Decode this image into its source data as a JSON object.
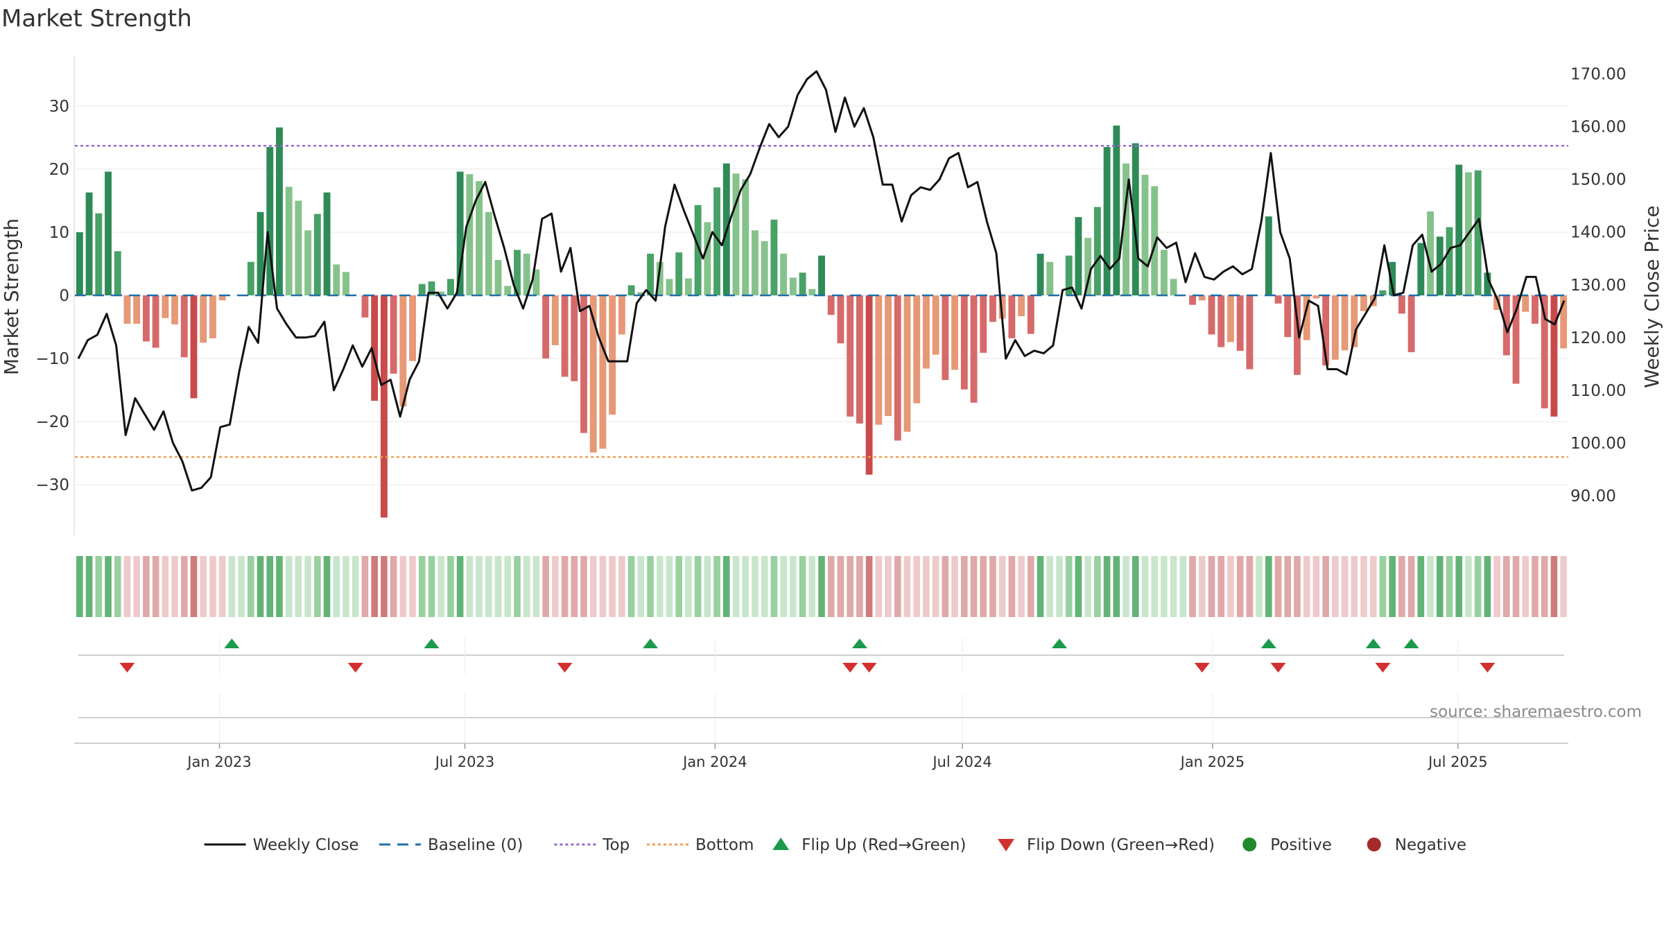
{
  "chart_data": {
    "type": "bar",
    "title": "Market Strength",
    "ylabel_left": "Market Strength",
    "ylabel_right": "Weekly Close Price",
    "left_ylim": [
      -38,
      38
    ],
    "left_ticks": [
      "30",
      "20",
      "10",
      "0",
      "−10",
      "−20",
      "−30"
    ],
    "left_tick_values": [
      30,
      20,
      10,
      0,
      -10,
      -20,
      -30
    ],
    "right_ylim": [
      82.5,
      173.5
    ],
    "right_ticks": [
      "170.00",
      "160.00",
      "150.00",
      "140.00",
      "130.00",
      "120.00",
      "110.00",
      "100.00",
      "90.00"
    ],
    "right_tick_values": [
      170,
      160,
      150,
      140,
      130,
      120,
      110,
      100,
      90
    ],
    "top_threshold": 23.7,
    "bottom_threshold": -25.6,
    "baseline": 0,
    "x_ticks": [
      "Jan 2023",
      "Jul 2023",
      "Jan 2024",
      "Jul 2024",
      "Jan 2025",
      "Jul 2025"
    ],
    "x_tick_weeks": [
      14.7,
      40.5,
      66.8,
      92.8,
      119.1,
      144.9
    ],
    "strength": [
      10,
      16.3,
      13,
      19.6,
      7,
      -4.5,
      -4.5,
      -7.3,
      -8.3,
      -3.6,
      -4.6,
      -9.8,
      -16.3,
      -7.5,
      -6.8,
      -0.8,
      0,
      0,
      5.3,
      13.2,
      23.5,
      26.6,
      17.2,
      15,
      10.3,
      12.9,
      16.3,
      4.9,
      3.7,
      0,
      -3.5,
      -16.7,
      -35.2,
      -12.4,
      -17.6,
      -10.4,
      1.8,
      2.2,
      0.6,
      2.6,
      19.6,
      19.2,
      18.1,
      13.2,
      5.6,
      1.5,
      7.2,
      6.6,
      4.1,
      -10,
      -7.9,
      -12.9,
      -13.6,
      -21.8,
      -24.9,
      -24.3,
      -18.9,
      -6.2,
      1.6,
      0.5,
      6.6,
      5.3,
      2.6,
      6.8,
      2.7,
      14.3,
      11.6,
      17.1,
      20.9,
      19.3,
      18.4,
      10.3,
      8.6,
      12,
      6.6,
      2.8,
      3.6,
      1,
      6.3,
      -3.1,
      -7.6,
      -19.2,
      -20.3,
      -28.4,
      -20.5,
      -19.1,
      -23,
      -21.6,
      -17.1,
      -11.6,
      -9.4,
      -13.4,
      -11.8,
      -14.9,
      -17,
      -9.1,
      -4.2,
      -3.7,
      -6.8,
      -3.3,
      -6.1,
      6.6,
      5.3,
      0,
      6.3,
      12.4,
      9.1,
      14,
      23.5,
      26.9,
      20.9,
      24.1,
      19.1,
      17.3,
      7.2,
      2.6,
      0,
      -1.5,
      -0.8,
      -6.2,
      -8.2,
      -7.4,
      -8.8,
      -11.7,
      0,
      12.5,
      -1.3,
      -6.6,
      -12.6,
      -7.1,
      -0.5,
      -11.1,
      -10.2,
      -8.7,
      -8.2,
      -2.5,
      -1.7,
      0.8,
      5.3,
      -2.9,
      -9,
      8.3,
      13.3,
      9.3,
      10.8,
      20.7,
      19.5,
      19.8,
      3.6,
      -2.3,
      -9.5,
      -14,
      -2.6,
      -4.5,
      -17.9,
      -19.2,
      -8.4
    ],
    "strength_shade": [
      3,
      3,
      2,
      3,
      2,
      1,
      1,
      2,
      2,
      1,
      1,
      2,
      3,
      1,
      1,
      1,
      1,
      1,
      2,
      3,
      3,
      3,
      1,
      1,
      1,
      2,
      3,
      1,
      1,
      1,
      2,
      3,
      3,
      2,
      1,
      1,
      2,
      2,
      1,
      2,
      3,
      1,
      1,
      1,
      1,
      1,
      2,
      1,
      1,
      2,
      1,
      2,
      2,
      2,
      1,
      1,
      1,
      1,
      2,
      1,
      2,
      1,
      1,
      2,
      1,
      2,
      1,
      2,
      3,
      1,
      1,
      1,
      1,
      2,
      1,
      1,
      2,
      1,
      3,
      2,
      2,
      2,
      2,
      3,
      1,
      1,
      2,
      1,
      1,
      1,
      1,
      2,
      1,
      2,
      2,
      2,
      2,
      1,
      2,
      1,
      2,
      3,
      1,
      1,
      2,
      3,
      1,
      2,
      3,
      3,
      1,
      3,
      1,
      1,
      1,
      1,
      1,
      2,
      1,
      2,
      2,
      1,
      2,
      2,
      1,
      3,
      2,
      2,
      2,
      1,
      1,
      2,
      1,
      1,
      1,
      1,
      1,
      2,
      3,
      2,
      2,
      3,
      1,
      3,
      2,
      3,
      1,
      2,
      3,
      1,
      2,
      2,
      1,
      2,
      2,
      3,
      1
    ],
    "heat_strip": [
      3,
      3,
      2,
      3,
      2,
      1,
      1,
      2,
      2,
      1,
      1,
      2,
      3,
      1,
      1,
      1,
      1,
      1,
      2,
      3,
      3,
      3,
      1,
      1,
      1,
      2,
      3,
      1,
      1,
      1,
      2,
      3,
      3,
      2,
      1,
      1,
      2,
      2,
      1,
      2,
      3,
      1,
      1,
      1,
      1,
      1,
      2,
      1,
      1,
      2,
      1,
      2,
      2,
      2,
      1,
      1,
      1,
      1,
      2,
      1,
      2,
      1,
      1,
      2,
      1,
      2,
      1,
      2,
      3,
      1,
      1,
      1,
      1,
      2,
      1,
      1,
      2,
      1,
      3,
      2,
      2,
      2,
      2,
      3,
      1,
      1,
      2,
      1,
      1,
      1,
      1,
      2,
      1,
      2,
      2,
      2,
      2,
      1,
      2,
      1,
      2,
      3,
      1,
      1,
      2,
      3,
      1,
      2,
      3,
      3,
      1,
      3,
      1,
      1,
      1,
      1,
      1,
      2,
      1,
      2,
      2,
      1,
      2,
      2,
      1,
      3,
      2,
      2,
      2,
      1,
      1,
      2,
      1,
      1,
      1,
      1,
      1,
      2,
      3,
      2,
      2,
      3,
      1,
      3,
      2,
      3,
      1,
      2,
      3,
      1,
      2,
      2,
      1,
      2,
      2,
      3,
      1
    ],
    "weekly_close": [
      116,
      119.5,
      120.5,
      124.5,
      118.5,
      101.5,
      108.5,
      105.5,
      102.5,
      106,
      100,
      96.5,
      91,
      91.5,
      93.5,
      103,
      103.5,
      113.5,
      122,
      119,
      140,
      125.5,
      122.5,
      120,
      120,
      120.3,
      123,
      110,
      114,
      118.5,
      114.5,
      118,
      111,
      112,
      105,
      112,
      115.5,
      128.5,
      128.5,
      125.5,
      128.5,
      141,
      146,
      149.5,
      143,
      137,
      130,
      125.5,
      131,
      142.5,
      143.5,
      132.5,
      137,
      125,
      126,
      120,
      115.5,
      115.5,
      115.5,
      126.5,
      129,
      127,
      141,
      149,
      144,
      139.5,
      135,
      140,
      137.5,
      143,
      148,
      151,
      156,
      160.5,
      158,
      160,
      166,
      169,
      170.5,
      167,
      159,
      165.5,
      160,
      163.5,
      158,
      149,
      149,
      142,
      147,
      148.5,
      148,
      150,
      154,
      155,
      148.5,
      149.5,
      142,
      136,
      116,
      119.5,
      116.5,
      117.5,
      117,
      118.5,
      129,
      129.5,
      125.5,
      133,
      135.5,
      133,
      135,
      150,
      135,
      133.5,
      139,
      137,
      138,
      130.5,
      136,
      131.5,
      131,
      132.5,
      133.5,
      132,
      133,
      142,
      155,
      140,
      135,
      120,
      127,
      126,
      114,
      114,
      113,
      121.5,
      124.5,
      127.5,
      137.5,
      128,
      128.5,
      137.5,
      139.5,
      132.5,
      134,
      137,
      137.5,
      140,
      142.5,
      131,
      127,
      121,
      125.5,
      131.5,
      131.5,
      123.5,
      122.5,
      127
    ],
    "flip_up_weeks": [
      16,
      37,
      60,
      82,
      103,
      125,
      136,
      140
    ],
    "flip_down_weeks": [
      5,
      29,
      51,
      81,
      83,
      118,
      126,
      137,
      148
    ],
    "legend": [
      {
        "key": "weekly_close",
        "label": "Weekly Close"
      },
      {
        "key": "baseline",
        "label": "Baseline (0)"
      },
      {
        "key": "top",
        "label": "Top"
      },
      {
        "key": "bottom",
        "label": "Bottom"
      },
      {
        "key": "flip_up",
        "label": "Flip Up (Red→Green)"
      },
      {
        "key": "flip_down",
        "label": "Flip Down (Green→Red)"
      },
      {
        "key": "positive",
        "label": "Positive"
      },
      {
        "key": "negative",
        "label": "Negative"
      }
    ],
    "legend_position": "bottom-center",
    "source": "source: sharemaestro.com"
  },
  "colors": {
    "pos_dark": "#2e8b57",
    "pos_mid": "#48a166",
    "pos_light": "#86c28b",
    "neg_dark": "#c94a4a",
    "neg_mid": "#d66a6a",
    "neg_light": "#e69977",
    "line": "#111111",
    "baseline": "#1f6fa8",
    "top": "#9966cc",
    "bottom": "#f0a050",
    "flip_up": "#1a9a4a",
    "flip_down": "#d32f2f",
    "positive_dot": "#1e8a2e",
    "negative_dot": "#a52a2a",
    "grid": "#e8e8e8"
  }
}
